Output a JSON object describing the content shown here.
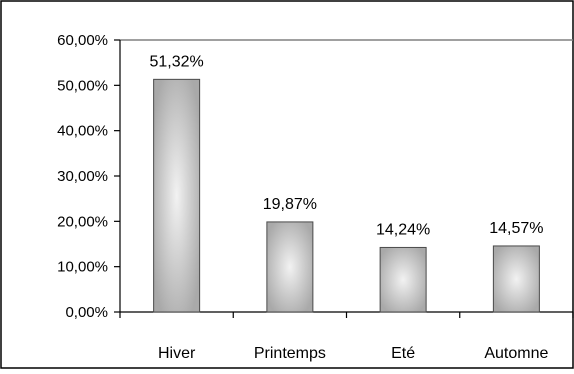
{
  "chart_data": {
    "type": "bar",
    "title": "",
    "xlabel": "",
    "ylabel": "",
    "categories": [
      "Hiver",
      "Printemps",
      "Eté",
      "Automne"
    ],
    "values": [
      51.32,
      19.87,
      14.24,
      14.57
    ],
    "data_labels": [
      "51,32%",
      "19,87%",
      "14,24%",
      "14,57%"
    ],
    "ylim": [
      0,
      60
    ],
    "y_ticks": [
      0,
      10,
      20,
      30,
      40,
      50,
      60
    ],
    "y_tick_labels": [
      "0,00%",
      "10,00%",
      "20,00%",
      "30,00%",
      "40,00%",
      "50,00%",
      "60,00%"
    ],
    "grid": false,
    "legend": "none",
    "bar_fill": "gradient-gray",
    "colors": {
      "bar_edge": "#4a4a4a",
      "bar_dark": "#a9a9a9",
      "bar_light": "#f2f2f2",
      "axis": "#000000",
      "plot_frame": "#808080"
    }
  }
}
